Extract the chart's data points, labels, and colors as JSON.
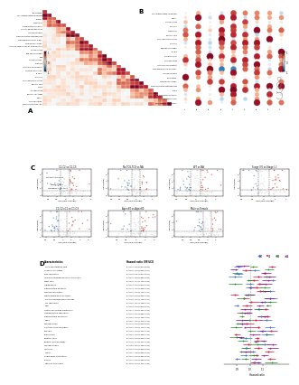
{
  "panel_A": {
    "labels": [
      "Endocytosis",
      "Cancer-associated Fibroblasts",
      "Ghosts",
      "Mast cells",
      "Plasmacytoid dendritic",
      "Hematological regulation",
      "Adenosine traffic",
      "Tumor-associated Macrophages",
      "Macrophages and DC traffic",
      "Myeloid cells traffic",
      "Immune Suppression by Myeloid Cells",
      "TH1 regulation",
      "Treg and TH1 traffic",
      "Treg",
      "TH1 regulation2",
      "match B",
      "Antitumor coordination",
      "Co-stimulation CD4",
      "B cells",
      "NK cells",
      "Checkpoint stimulation",
      "Effector cells",
      "T cells",
      "Th1 regulation",
      "Effector cell traffic",
      "MDSC",
      "COP regulation",
      "Tumor proliferation rate"
    ],
    "n": 28
  },
  "panel_B": {
    "row_labels": [
      "Cancer-associated fibroblasts",
      "MDSC",
      "TH1 regulation",
      "NK cells",
      "Mast cells",
      "Effector cells",
      "Checkpoint stimulation",
      "TH1 cells",
      "Treg and TH1 traffic",
      "B cells",
      "Dendritic cells",
      "COP regulation",
      "Antitumor coordination",
      "Macrophages and DC traffic",
      "Adenosine traffic",
      "Endocytosis",
      "Myeloid cells traffic",
      "Tumor-associated Macrophages",
      "T cells",
      "Plasmacytoid dendritic",
      "Immune Suppression",
      "Cancer-assoc. fibroblasts"
    ],
    "col_labels": [
      "C1",
      "C2",
      "C3",
      "C4",
      "C5",
      "C6",
      "C7",
      "C8",
      "C9"
    ]
  },
  "panel_C": {
    "subplots": [
      {
        "title": "C1-C2 vs C1-C3"
      },
      {
        "title": "No TCG-TCG vs NA"
      },
      {
        "title": "WT vs NA"
      },
      {
        "title": "Stage IIIV vs Stage I-II"
      },
      {
        "title": "C1-C2=C1 vs C1-C3"
      },
      {
        "title": "Age<60 vs Age>60"
      },
      {
        "title": "Male vs Female"
      }
    ]
  },
  "panel_D": {
    "features": [
      "Tumor proliferation rate",
      "Granulocytic traffic",
      "EMT regulation",
      "Immune Suppression by Myeloid Cells",
      "Mast cells",
      "Angiogenesis",
      "Plasmacytoid dendritic",
      "Myeloid cells traffic",
      "Macrophage-and-TH1 traffic",
      "Tumor-associated Macrophages",
      "TH1 regulation",
      "Treg",
      "Cancer-associated Fibroblasts",
      "Hematological regulation",
      "Plasmacytoid dendritic2",
      "Treg2",
      "NK regulation",
      "Co-stimulation members",
      "NK cells",
      "Endocytosis",
      "Effector cells",
      "Effector and NK traffic",
      "NK regulation2",
      "match B",
      "T cells",
      "Checkpoint stimulation",
      "B cells",
      "Treg and TH1 traffic"
    ],
    "group_colors": [
      "#4169E1",
      "#DC143C",
      "#228B22",
      "#8B008B"
    ],
    "legend_labels": [
      "C1",
      "C2",
      "C3",
      "C4"
    ],
    "x_axis_label": "Hazard ratio",
    "xlim": [
      0.8,
      1.3
    ],
    "xticks": [
      0.9,
      1.0,
      1.1
    ]
  },
  "colors": {
    "background": "#ffffff"
  }
}
